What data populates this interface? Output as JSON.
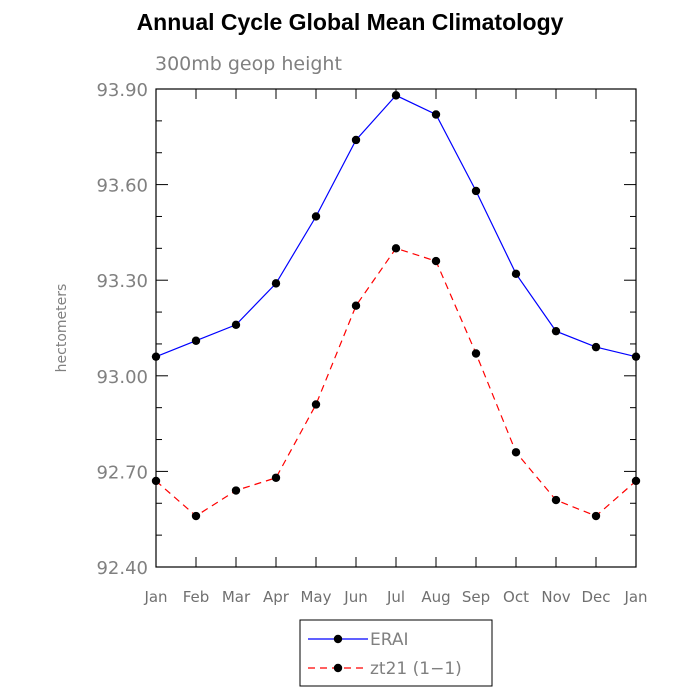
{
  "chart_data": {
    "type": "line",
    "title": "Annual Cycle Global Mean Climatology",
    "subtitle": "300mb geop height",
    "xlabel": "",
    "ylabel": "hectometers",
    "categories": [
      "Jan",
      "Feb",
      "Mar",
      "Apr",
      "May",
      "Jun",
      "Jul",
      "Aug",
      "Sep",
      "Oct",
      "Nov",
      "Dec",
      "Jan"
    ],
    "yticks": [
      "92.40",
      "92.70",
      "93.00",
      "93.30",
      "93.60",
      "93.90"
    ],
    "ylim": [
      92.4,
      93.9
    ],
    "grid": false,
    "legend_position": "bottom-center",
    "series": [
      {
        "name": "ERAI",
        "color": "#0000ff",
        "line_style": "solid",
        "marker": "filled-circle",
        "values": [
          93.06,
          93.11,
          93.16,
          93.29,
          93.5,
          93.74,
          93.88,
          93.82,
          93.58,
          93.32,
          93.14,
          93.09,
          93.06
        ]
      },
      {
        "name": "zt21 (1−1)",
        "color": "#ff0000",
        "line_style": "dashed",
        "marker": "filled-circle",
        "values": [
          92.67,
          92.56,
          92.64,
          92.68,
          92.91,
          93.22,
          93.4,
          93.36,
          93.07,
          92.76,
          92.61,
          92.56,
          92.67
        ]
      }
    ]
  }
}
